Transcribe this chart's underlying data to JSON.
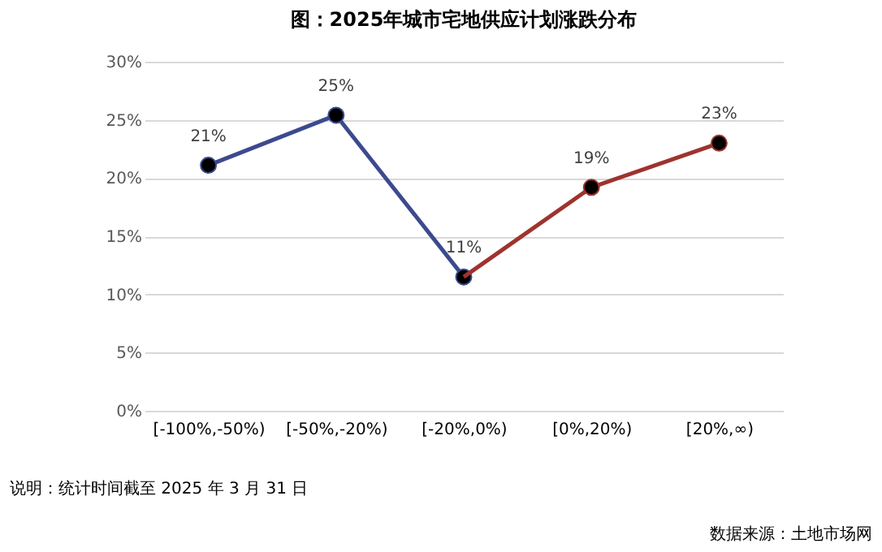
{
  "chart_data": {
    "type": "line",
    "title": "图：2025年城市宅地供应计划涨跌分布",
    "categories": [
      "[-100%,-50%)",
      "[-50%,-20%)",
      "[-20%,0%)",
      "[0%,20%)",
      "[20%,∞)"
    ],
    "series": [
      {
        "color": "#3c4a8e",
        "values": [
          21.1,
          25.4,
          11.5,
          null,
          null
        ],
        "value_labels": [
          "21%",
          "25%",
          "11%",
          null,
          null
        ]
      },
      {
        "color": "#9e332e",
        "values": [
          null,
          null,
          11.5,
          19.2,
          23.0
        ],
        "value_labels": [
          null,
          null,
          null,
          "19%",
          "23%"
        ]
      }
    ],
    "ylim": [
      0,
      30
    ],
    "yticks": [
      {
        "value": 0,
        "label": "0%"
      },
      {
        "value": 5,
        "label": "5%"
      },
      {
        "value": 10,
        "label": "10%"
      },
      {
        "value": 15,
        "label": "15%"
      },
      {
        "value": 20,
        "label": "20%"
      },
      {
        "value": 25,
        "label": "25%"
      },
      {
        "value": 30,
        "label": "30%"
      }
    ],
    "grid": "y",
    "marker": "circle",
    "line_style": "solid",
    "annotations": [
      "说明：统计时间截至 2025 年 3 月 31 日",
      "数据来源：土地市场网"
    ]
  }
}
